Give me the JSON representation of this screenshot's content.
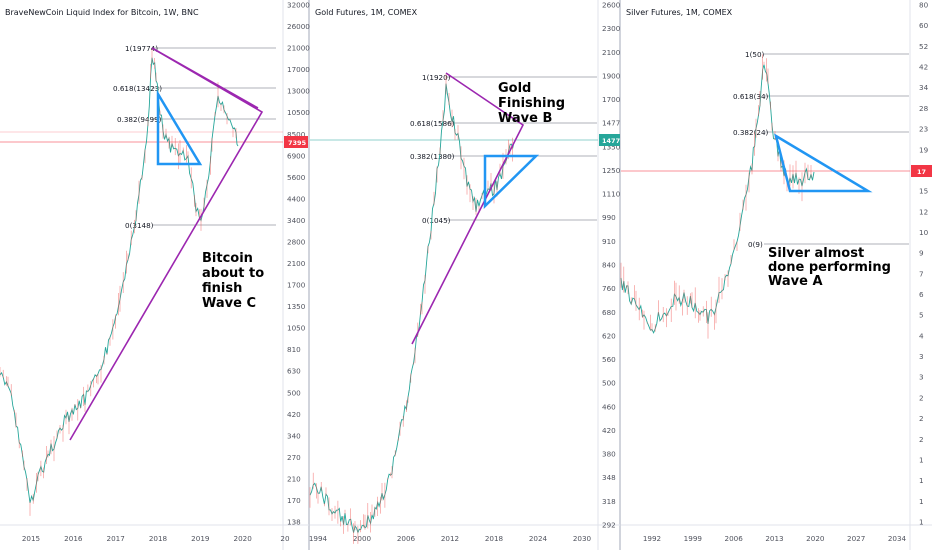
{
  "panels": [
    {
      "title": "BraveNewCoin Liquid Index for Bitcoin, 1W, BNC",
      "price_axis_labels": [
        "32000",
        "26000",
        "21000",
        "17000",
        "13000",
        "10500",
        "8500",
        "6900",
        "5600",
        "4400",
        "3400",
        "2800",
        "2100",
        "1700",
        "1350",
        "1050",
        "810",
        "630",
        "500",
        "420",
        "340",
        "270",
        "210",
        "170",
        "138"
      ],
      "time_axis_labels": [
        "2015",
        "2016",
        "2017",
        "2018",
        "2019",
        "2020",
        "20"
      ],
      "fib_labels": [
        "1(19774)",
        "0.618(13423)",
        "0.382(9499)",
        "0(3148)"
      ],
      "annotation": [
        "Bitcoin",
        "about to",
        "finish",
        "Wave C"
      ],
      "price_tag": "7395",
      "price_tag_color": "#f23645"
    },
    {
      "title": "Gold Futures, 1M, COMEX",
      "price_axis_labels": [
        "2600",
        "2300",
        "2100",
        "1900",
        "1700",
        "1477",
        "1350",
        "1250",
        "1110",
        "990",
        "910",
        "840",
        "760",
        "680",
        "620",
        "560",
        "500",
        "460",
        "420",
        "380",
        "348",
        "318",
        "292"
      ],
      "time_axis_labels": [
        "1994",
        "2000",
        "2006",
        "2012",
        "2018",
        "2024",
        "2030"
      ],
      "fib_labels": [
        "1(1920)",
        "0.618(1586)",
        "0.382(1380)",
        "0(1045)"
      ],
      "annotation": [
        "Gold",
        "Finishing",
        "Wave B"
      ],
      "price_tag": "1477",
      "price_tag_color": "#26a69a"
    },
    {
      "title": "Silver Futures, 1M, COMEX",
      "price_axis_labels": [
        "80",
        "60",
        "52",
        "42",
        "34",
        "28",
        "23",
        "19",
        "17",
        "15",
        "12",
        "10",
        "9",
        "7",
        "6",
        "5",
        "4",
        "3",
        "3",
        "2",
        "2",
        "2",
        "1",
        "1",
        "1",
        "1"
      ],
      "time_axis_labels": [
        "1992",
        "1999",
        "2006",
        "2013",
        "2020",
        "2027",
        "2034"
      ],
      "fib_labels": [
        "1(50)",
        "0.618(34)",
        "0.382(24)",
        "0(9)"
      ],
      "annotation": [
        "Silver  almost",
        "done performing",
        "Wave   A"
      ],
      "price_tag": "17",
      "price_tag_color": "#f23645"
    }
  ],
  "chart_data": [
    {
      "type": "line",
      "title": "BraveNewCoin Liquid Index for Bitcoin, 1W, BNC",
      "x": [
        "2015",
        "2016",
        "2017",
        "2018",
        "2019",
        "2020"
      ],
      "y_scale": "log",
      "annotations": {
        "fibonacci": [
          {
            "level": 1,
            "value": 19774
          },
          {
            "level": 0.618,
            "value": 13423
          },
          {
            "level": 0.382,
            "value": 9499
          },
          {
            "level": 0,
            "value": 3148
          }
        ],
        "text": "Bitcoin about to finish Wave C"
      },
      "last_price": 7395
    },
    {
      "type": "line",
      "title": "Gold Futures, 1M, COMEX",
      "x": [
        "1994",
        "2000",
        "2006",
        "2012",
        "2018",
        "2024",
        "2030"
      ],
      "y_scale": "log",
      "annotations": {
        "fibonacci": [
          {
            "level": 1,
            "value": 1920
          },
          {
            "level": 0.618,
            "value": 1586
          },
          {
            "level": 0.382,
            "value": 1380
          },
          {
            "level": 0,
            "value": 1045
          }
        ],
        "text": "Gold Finishing Wave B"
      },
      "last_price": 1477
    },
    {
      "type": "line",
      "title": "Silver Futures, 1M, COMEX",
      "x": [
        "1992",
        "1999",
        "2006",
        "2013",
        "2020",
        "2027",
        "2034"
      ],
      "y_scale": "log",
      "annotations": {
        "fibonacci": [
          {
            "level": 1,
            "value": 50
          },
          {
            "level": 0.618,
            "value": 34
          },
          {
            "level": 0.382,
            "value": 24
          },
          {
            "level": 0,
            "value": 9
          }
        ],
        "text": "Silver almost done performing Wave A"
      },
      "last_price": 17
    }
  ]
}
